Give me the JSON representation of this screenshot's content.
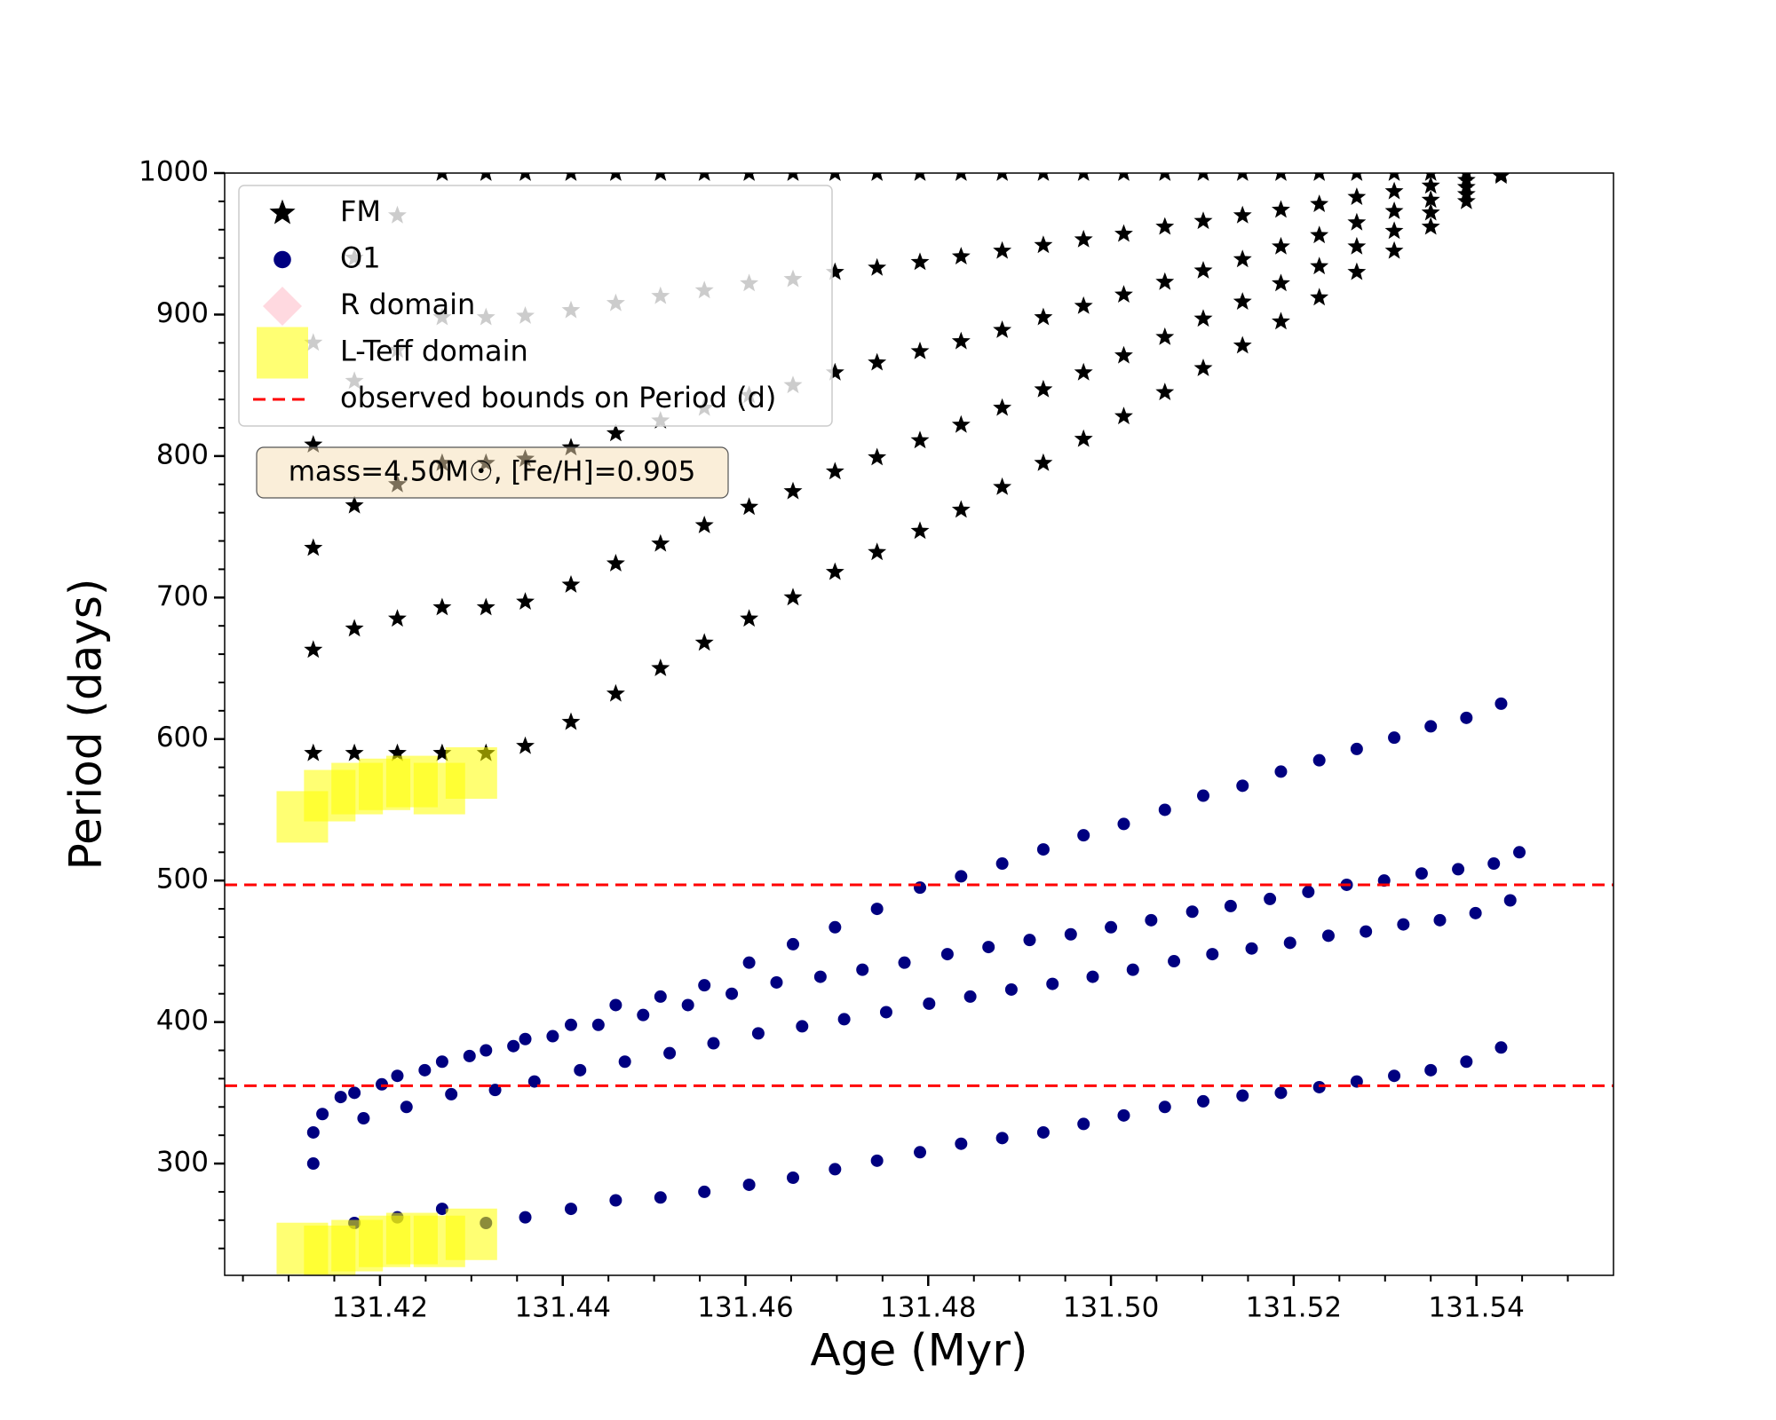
{
  "chart_data": {
    "type": "scatter",
    "xlabel": "Age (Myr)",
    "ylabel": "Period (days)",
    "xlim": [
      131.403,
      131.555
    ],
    "ylim": [
      221,
      1000
    ],
    "xticks": [
      131.42,
      131.44,
      131.46,
      131.48,
      {
        "value": 131.5,
        "label": "131.50"
      },
      131.52,
      131.54
    ],
    "xminorticks": [
      131.405,
      131.41,
      131.415,
      131.425,
      131.43,
      131.435,
      131.445,
      131.45,
      131.455,
      131.465,
      131.47,
      131.475,
      131.485,
      131.49,
      131.495,
      131.505,
      131.51,
      131.515,
      131.525,
      131.53,
      131.535,
      131.545,
      131.55
    ],
    "yticks": [
      300,
      400,
      500,
      600,
      700,
      800,
      900,
      1000
    ],
    "yminorticks": [
      240,
      260,
      280,
      320,
      340,
      360,
      380,
      420,
      440,
      460,
      480,
      520,
      540,
      560,
      580,
      620,
      640,
      660,
      680,
      720,
      740,
      760,
      780,
      820,
      840,
      860,
      880,
      920,
      940,
      960,
      980
    ],
    "legend": "upper left",
    "annotation": "mass=4.50M☉, [Fe/H]=0.905",
    "series": [
      {
        "name": "FM",
        "color": "#000000",
        "marker": "star",
        "x": [
          131.4127,
          131.4127,
          131.4127,
          131.4127,
          131.4127,
          131.4172,
          131.4172,
          131.4172,
          131.4172,
          131.4172,
          131.4219,
          131.4219,
          131.4219,
          131.4219,
          131.4219,
          131.4268,
          131.4268,
          131.4268,
          131.4268,
          131.4268,
          131.4316,
          131.4316,
          131.4316,
          131.4316,
          131.4316,
          131.4359,
          131.4359,
          131.4359,
          131.4359,
          131.4359,
          131.4409,
          131.4409,
          131.4409,
          131.4409,
          131.4409,
          131.4458,
          131.4458,
          131.4458,
          131.4458,
          131.4458,
          131.4507,
          131.4507,
          131.4507,
          131.4507,
          131.4507,
          131.4555,
          131.4555,
          131.4555,
          131.4555,
          131.4555,
          131.4604,
          131.4604,
          131.4604,
          131.4604,
          131.4604,
          131.4652,
          131.4652,
          131.4652,
          131.4652,
          131.4652,
          131.4698,
          131.4698,
          131.4698,
          131.4698,
          131.4698,
          131.4744,
          131.4744,
          131.4744,
          131.4744,
          131.4744,
          131.4791,
          131.4791,
          131.4791,
          131.4791,
          131.4791,
          131.4836,
          131.4836,
          131.4836,
          131.4836,
          131.4836,
          131.4881,
          131.4881,
          131.4881,
          131.4881,
          131.4881,
          131.4926,
          131.4926,
          131.4926,
          131.4926,
          131.4926,
          131.497,
          131.497,
          131.497,
          131.497,
          131.497,
          131.5014,
          131.5014,
          131.5014,
          131.5014,
          131.5014,
          131.5059,
          131.5059,
          131.5059,
          131.5059,
          131.5059,
          131.5101,
          131.5101,
          131.5101,
          131.5101,
          131.5101,
          131.5144,
          131.5144,
          131.5144,
          131.5144,
          131.5144,
          131.5186,
          131.5186,
          131.5186,
          131.5186,
          131.5186,
          131.5228,
          131.5228,
          131.5228,
          131.5228,
          131.5228,
          131.5269,
          131.5269,
          131.5269,
          131.5269,
          131.5269,
          131.531,
          131.531,
          131.531,
          131.531,
          131.531,
          131.535,
          131.535,
          131.535,
          131.535,
          131.535,
          131.5389,
          131.5389,
          131.5389,
          131.5389,
          131.5389,
          131.5427,
          131.5427,
          131.5427,
          131.5427,
          131.5427
        ],
        "values": [
          590,
          663,
          735,
          808,
          880,
          590,
          678,
          765,
          853,
          940,
          590,
          685,
          780,
          875,
          970,
          590,
          693,
          795,
          898,
          1000,
          590,
          693,
          795,
          898,
          1000,
          595,
          697,
          798,
          899,
          1000,
          612,
          709,
          806,
          903,
          1000,
          632,
          724,
          816,
          908,
          1000,
          650,
          738,
          825,
          913,
          1000,
          668,
          751,
          834,
          917,
          1000,
          685,
          764,
          843,
          922,
          1000,
          700,
          775,
          850,
          925,
          1000,
          718,
          789,
          859,
          930,
          1000,
          732,
          799,
          866,
          933,
          1000,
          747,
          811,
          874,
          937,
          1000,
          762,
          822,
          881,
          941,
          1000,
          778,
          834,
          889,
          945,
          1000,
          795,
          847,
          898,
          949,
          1000,
          812,
          859,
          906,
          953,
          1000,
          828,
          871,
          914,
          957,
          1000,
          845,
          884,
          923,
          962,
          1000,
          862,
          897,
          931,
          966,
          1000,
          878,
          909,
          939,
          970,
          1000,
          895,
          922,
          948,
          974,
          1000,
          912,
          934,
          956,
          978,
          1000,
          930,
          948,
          965,
          983,
          1000,
          945,
          959,
          973,
          987,
          1000,
          962,
          972,
          981,
          991,
          1000,
          980,
          985,
          990,
          995,
          1000,
          998,
          999,
          999,
          1000,
          1000
        ]
      },
      {
        "name": "O1",
        "color": "#000080",
        "marker": "circle",
        "x": [
          131.4127,
          131.4127,
          131.4137,
          131.4157,
          131.4172,
          131.4172,
          131.4182,
          131.4202,
          131.4219,
          131.4219,
          131.4229,
          131.4249,
          131.4268,
          131.4268,
          131.4278,
          131.4298,
          131.4316,
          131.4316,
          131.4326,
          131.4346,
          131.4359,
          131.4359,
          131.4369,
          131.4389,
          131.4409,
          131.4409,
          131.4419,
          131.4439,
          131.4458,
          131.4458,
          131.4468,
          131.4488,
          131.4507,
          131.4507,
          131.4517,
          131.4537,
          131.4555,
          131.4555,
          131.4565,
          131.4585,
          131.4604,
          131.4604,
          131.4614,
          131.4634,
          131.4652,
          131.4652,
          131.4662,
          131.4682,
          131.4698,
          131.4698,
          131.4708,
          131.4728,
          131.4744,
          131.4744,
          131.4754,
          131.4774,
          131.4791,
          131.4791,
          131.4801,
          131.4821,
          131.4836,
          131.4836,
          131.4846,
          131.4866,
          131.4881,
          131.4881,
          131.4891,
          131.4911,
          131.4926,
          131.4926,
          131.4936,
          131.4956,
          131.497,
          131.497,
          131.498,
          131.5,
          131.5014,
          131.5014,
          131.5024,
          131.5044,
          131.5059,
          131.5059,
          131.5069,
          131.5089,
          131.5101,
          131.5101,
          131.5111,
          131.5131,
          131.5144,
          131.5144,
          131.5154,
          131.5174,
          131.5186,
          131.5186,
          131.5196,
          131.5216,
          131.5228,
          131.5228,
          131.5238,
          131.5258,
          131.5269,
          131.5269,
          131.5279,
          131.5299,
          131.531,
          131.531,
          131.532,
          131.534,
          131.535,
          131.535,
          131.536,
          131.538,
          131.5389,
          131.5389,
          131.5399,
          131.5419,
          131.5427,
          131.5427,
          131.5437,
          131.5447
        ],
        "values": [
          322,
          300,
          335,
          347,
          350,
          258,
          332,
          356,
          362,
          262,
          340,
          366,
          372,
          268,
          349,
          376,
          380,
          258,
          352,
          383,
          388,
          262,
          358,
          390,
          398,
          268,
          366,
          398,
          412,
          274,
          372,
          405,
          418,
          276,
          378,
          412,
          426,
          280,
          385,
          420,
          442,
          285,
          392,
          428,
          455,
          290,
          397,
          432,
          467,
          296,
          402,
          437,
          480,
          302,
          407,
          442,
          495,
          308,
          413,
          448,
          503,
          314,
          418,
          453,
          512,
          318,
          423,
          458,
          522,
          322,
          427,
          462,
          532,
          328,
          432,
          467,
          540,
          334,
          437,
          472,
          550,
          340,
          443,
          478,
          560,
          344,
          448,
          482,
          567,
          348,
          452,
          487,
          577,
          350,
          456,
          492,
          585,
          354,
          461,
          497,
          593,
          358,
          464,
          500,
          601,
          362,
          469,
          505,
          609,
          366,
          472,
          508,
          615,
          372,
          477,
          512,
          625,
          382,
          486,
          520
        ]
      },
      {
        "name": "R domain",
        "color": "#ffc0cb",
        "marker": "diamond",
        "x": [],
        "values": []
      },
      {
        "name": "L-Teff domain",
        "color": "#ffff00",
        "marker": "square",
        "x": [
          131.4115,
          131.4145,
          131.4175,
          131.4205,
          131.4235,
          131.4265,
          131.43,
          131.4115,
          131.4145,
          131.4175,
          131.4205,
          131.4235,
          131.4265,
          131.43
        ],
        "values": [
          240,
          238,
          242,
          245,
          247,
          245,
          250,
          545,
          560,
          565,
          568,
          570,
          565,
          576
        ]
      }
    ],
    "hlines": {
      "name": "observed bounds on Period (d)",
      "color": "#ff0000",
      "values": [
        355,
        497
      ]
    }
  }
}
